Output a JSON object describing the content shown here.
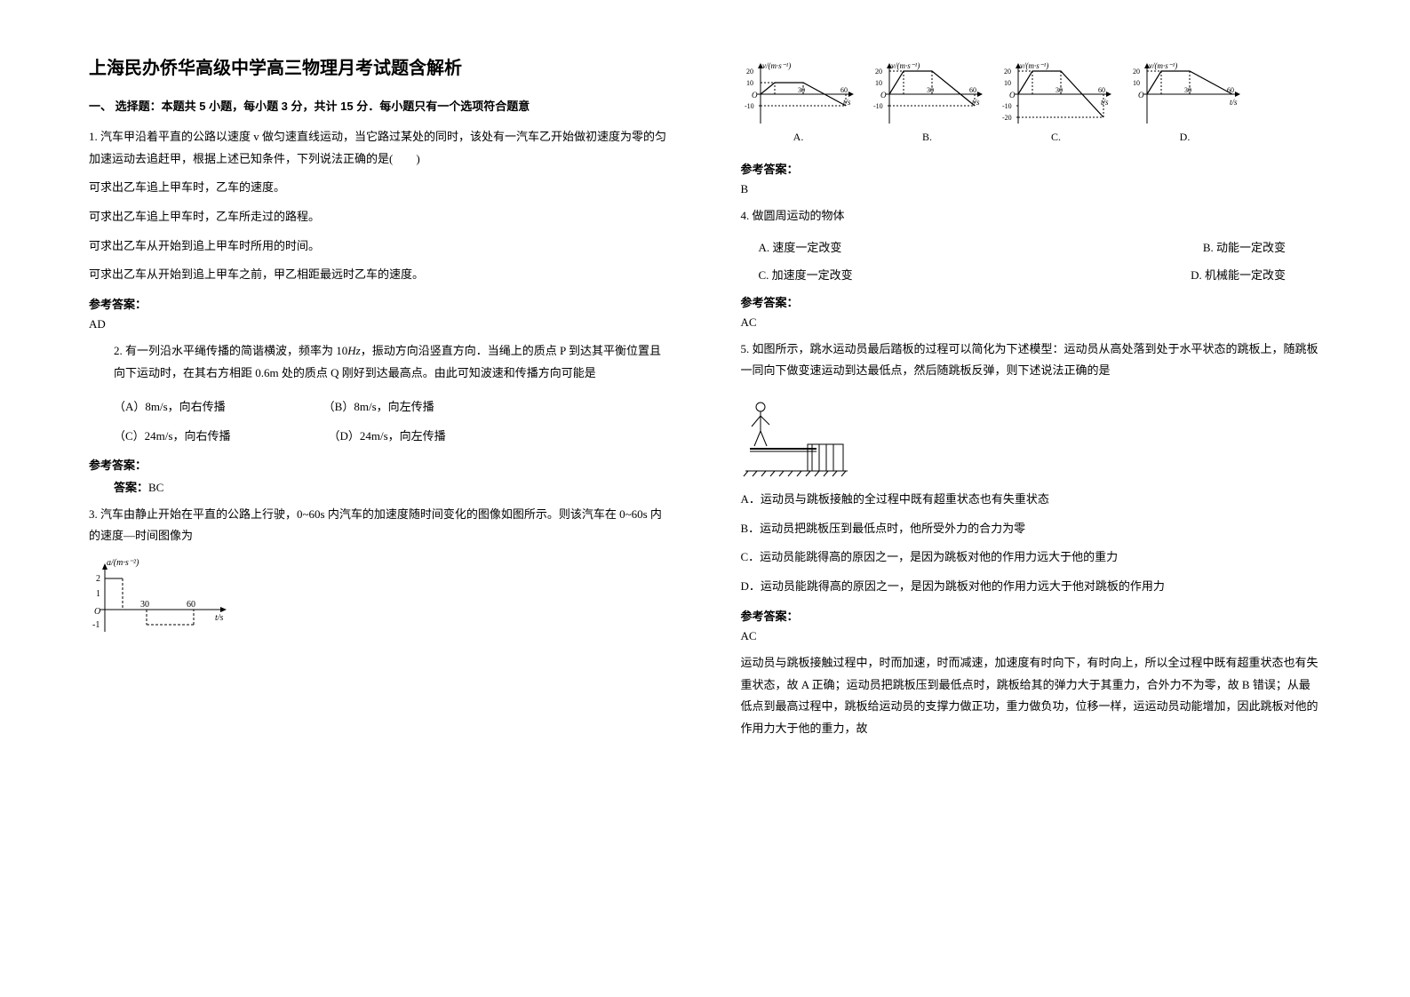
{
  "title": "上海民办侨华高级中学高三物理月考试题含解析",
  "section1": "一、 选择题：本题共 5 小题，每小题 3 分，共计 15 分．每小题只有一个选项符合题意",
  "q1": {
    "stem": "1. 汽车甲沿着平直的公路以速度 v 做匀速直线运动，当它路过某处的同时，该处有一汽车乙开始做初速度为零的匀加速运动去追赶甲，根据上述已知条件，下列说法正确的是(　　)",
    "lines": [
      "可求出乙车追上甲车时，乙车的速度。",
      "可求出乙车追上甲车时，乙车所走过的路程。",
      "可求出乙车从开始到追上甲车时所用的时间。",
      "可求出乙车从开始到追上甲车之前，甲乙相距最远时乙车的速度。"
    ],
    "answer_label": "参考答案：",
    "answer": "AD"
  },
  "q2": {
    "stem_a": "2. 有一列沿水平绳传播的简谐横波，频率为 10",
    "stem_b": "，振动方向沿竖直方向．当绳上的质点 P 到达其平衡位置且向下运动时，在其右方相距 0.6m 处的质点 Q 刚好到达最高点。由此可知波速和传播方向可能是",
    "opts": [
      {
        "l": "（A）8m/s，向右传播",
        "r": "（B）8m/s，向左传播"
      },
      {
        "l": "（C）24m/s，向右传播",
        "r": "（D）24m/s，向左传播"
      }
    ],
    "answer_label": "参考答案：",
    "answer_prefix": "答案：",
    "answer": "BC"
  },
  "q3": {
    "stem": "3. 汽车由静止开始在平直的公路上行驶，0~60s 内汽车的加速度随时间变化的图像如图所示。则该汽车在 0~60s 内的速度—时间图像为",
    "small_chart": {
      "ylabel": "a/(m·s⁻²)",
      "xlabel": "t/s",
      "yticks": [
        "2",
        "1",
        "O",
        "-1"
      ],
      "xticks": [
        "30",
        "60"
      ],
      "axis_color": "#000000",
      "bg": "#ffffff"
    },
    "charts": {
      "ylabel": "v/(m·s⁻¹)",
      "xlabel": "t/s",
      "yticks_pos": [
        "20",
        "10",
        "O",
        "-10",
        "-20"
      ],
      "xticks": [
        "30",
        "60"
      ],
      "axis_color": "#000000",
      "dash_color": "#000000",
      "items": [
        {
          "label": "A.",
          "series": [
            [
              0,
              0
            ],
            [
              10,
              10
            ],
            [
              30,
              10
            ],
            [
              60,
              -10
            ]
          ],
          "show_neg": [
            "-10"
          ]
        },
        {
          "label": "B.",
          "series": [
            [
              0,
              0
            ],
            [
              10,
              20
            ],
            [
              30,
              20
            ],
            [
              60,
              -10
            ]
          ],
          "show_neg": [
            "-10"
          ]
        },
        {
          "label": "C.",
          "series": [
            [
              0,
              0
            ],
            [
              10,
              20
            ],
            [
              30,
              20
            ],
            [
              60,
              -20
            ]
          ],
          "show_neg": [
            "-10",
            "-20"
          ]
        },
        {
          "label": "D.",
          "series": [
            [
              0,
              0
            ],
            [
              10,
              20
            ],
            [
              30,
              20
            ],
            [
              60,
              0
            ]
          ],
          "show_neg": []
        }
      ]
    },
    "answer_label": "参考答案：",
    "answer": "B"
  },
  "q4": {
    "stem": "4. 做圆周运动的物体",
    "opts": [
      "A. 速度一定改变",
      "B. 动能一定改变",
      "C. 加速度一定改变",
      "D. 机械能一定改变"
    ],
    "answer_label": "参考答案：",
    "answer": "AC"
  },
  "q5": {
    "stem": "5. 如图所示，跳水运动员最后踏板的过程可以简化为下述模型：运动员从高处落到处于水平状态的跳板上，随跳板一同向下做变速运动到达最低点，然后随跳板反弹，则下述说法正确的是",
    "opts": [
      "A．运动员与跳板接触的全过程中既有超重状态也有失重状态",
      "B．运动员把跳板压到最低点时，他所受外力的合力为零",
      "C．运动员能跳得高的原因之一，是因为跳板对他的作用力远大于他的重力",
      "D．运动员能跳得高的原因之一，是因为跳板对他的作用力远大于他对跳板的作用力"
    ],
    "answer_label": "参考答案：",
    "answer": "AC",
    "explain": "运动员与跳板接触过程中，时而加速，时而减速，加速度有时向下，有时向上，所以全过程中既有超重状态也有失重状态，故 A 正确；运动员把跳板压到最低点时，跳板给其的弹力大于其重力，合外力不为零，故 B 错误；从最低点到最高过程中，跳板给运动员的支撑力做正功，重力做负功，位移一样，运运动员动能增加，因此跳板对他的作用力大于他的重力，故"
  },
  "colors": {
    "text": "#000000",
    "bg": "#ffffff"
  }
}
